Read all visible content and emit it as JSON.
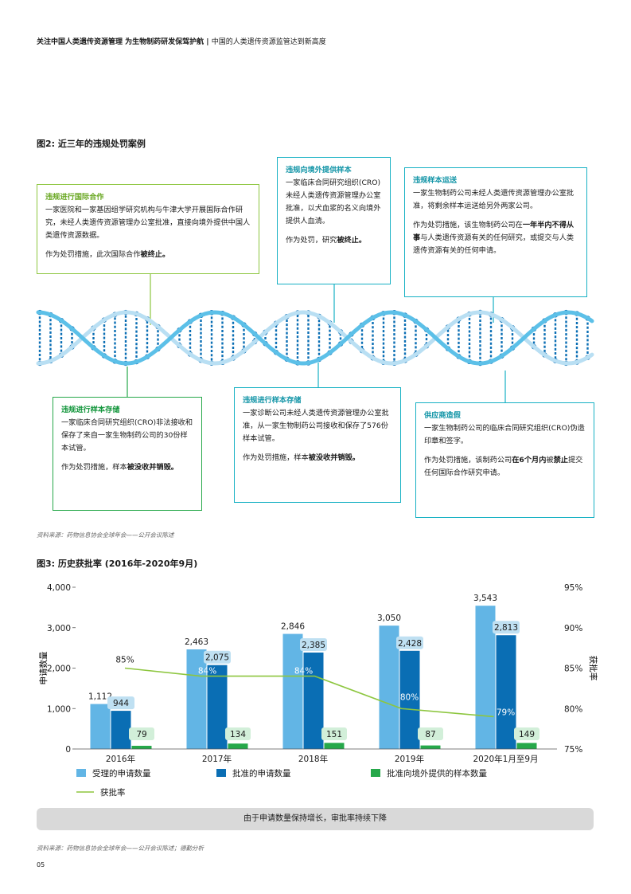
{
  "header": {
    "title": "关注中国人类遗传资源管理 为生物制药研发保驾护航",
    "separator": "|",
    "subtitle": "中国的人类遗传资源监管达到新高度"
  },
  "figure2": {
    "title": "图2: 近三年的违规处罚案例",
    "source": "资料来源：药物信息协会全球年会——公开会议陈述",
    "cases": [
      {
        "title": "违规进行国际合作",
        "body": "一家医院和一家基因组学研究机构与牛津大学开展国际合作研究，未经人类遗传资源管理办公室批准，直接向境外提供中国人类遗传资源数据。",
        "penalty_prefix": "作为处罚措施，此次国际合作",
        "penalty_bold": "被终止。"
      },
      {
        "title": "违规向境外提供样本",
        "body": "一家临床合同研究组织(CRO)未经人类遗传资源管理办公室批准，以犬血浆的名义向境外提供人血清。",
        "penalty_prefix": "作为处罚，研究",
        "penalty_bold": "被终止。"
      },
      {
        "title": "违规样本运送",
        "body": "一家生物制药公司未经人类遗传资源管理办公室批准，将剩余样本运送给另外两家公司。",
        "penalty_prefix": "作为处罚措施，该生物制药公司在",
        "penalty_bold": "一年半内不得从事",
        "penalty_suffix": "与人类遗传资源有关的任何研究，或提交与人类遗传资源有关的任何申请。"
      },
      {
        "title": "违规进行样本存储",
        "body": "一家临床合同研究组织(CRO)非法接收和保存了来自一家生物制药公司的30份样本试管。",
        "penalty_prefix": "作为处罚措施，样本",
        "penalty_bold": "被没收并销毁。"
      },
      {
        "title": "违规进行样本存储",
        "body": "一家诊断公司未经人类遗传资源管理办公室批准，从一家生物制药公司接收和保存了576份样本试管。",
        "penalty_prefix": "作为处罚措施，样本",
        "penalty_bold": "被没收并销毁。"
      },
      {
        "title": "供应商造假",
        "body": "一家生物制药公司的临床合同研究组织(CRO)伪造印章和签字。",
        "penalty_prefix": "作为处罚措施，该制药公司",
        "penalty_bold": "在6个月内",
        "penalty_mid": "被",
        "penalty_bold2": "禁止",
        "penalty_suffix": "提交任何国际合作研究申请。"
      }
    ]
  },
  "figure3": {
    "title": "图3: 历史获批率 (2016年-2020年9月)",
    "summary": "由于申请数量保持增长，审批率持续下降",
    "source": "资料来源：药物信息协会全球年会——公开会议陈述；德勤分析",
    "chart_data": {
      "type": "bar",
      "categories": [
        "2016年",
        "2017年",
        "2018年",
        "2019年",
        "2020年1月至9月"
      ],
      "series": [
        {
          "name": "受理的申请数量",
          "values": [
            1112,
            2463,
            2846,
            3050,
            3543
          ],
          "color": "#62b5e5",
          "labels": [
            "1,112",
            "2,463",
            "2,846",
            "3,050",
            "3,543"
          ]
        },
        {
          "name": "批准的申请数量",
          "values": [
            944,
            2075,
            2385,
            2428,
            2813
          ],
          "color": "#0a6eb4",
          "labels": [
            "944",
            "2,075",
            "2,385",
            "2,428",
            "2,813"
          ]
        },
        {
          "name": "批准向境外提供的样本数量",
          "values": [
            79,
            134,
            151,
            87,
            149
          ],
          "color": "#26a84a",
          "labels": [
            "79",
            "134",
            "151",
            "87",
            "149"
          ]
        }
      ],
      "line": {
        "name": "获批率",
        "values": [
          85,
          84,
          84,
          80,
          79
        ],
        "labels": [
          "85%",
          "84%",
          "84%",
          "80%",
          "79%"
        ],
        "color": "#8dc63f"
      },
      "ylabel": "申请数量",
      "y2label": "获批率",
      "ylim": [
        0,
        4000
      ],
      "y2lim": [
        75,
        95
      ],
      "yticks": [
        "0",
        "1,000",
        "2,000",
        "3,000",
        "4,000"
      ],
      "y2ticks": [
        "75%",
        "80%",
        "85%",
        "90%",
        "95%"
      ],
      "legend_position": "bottom"
    }
  },
  "page_number": "05"
}
